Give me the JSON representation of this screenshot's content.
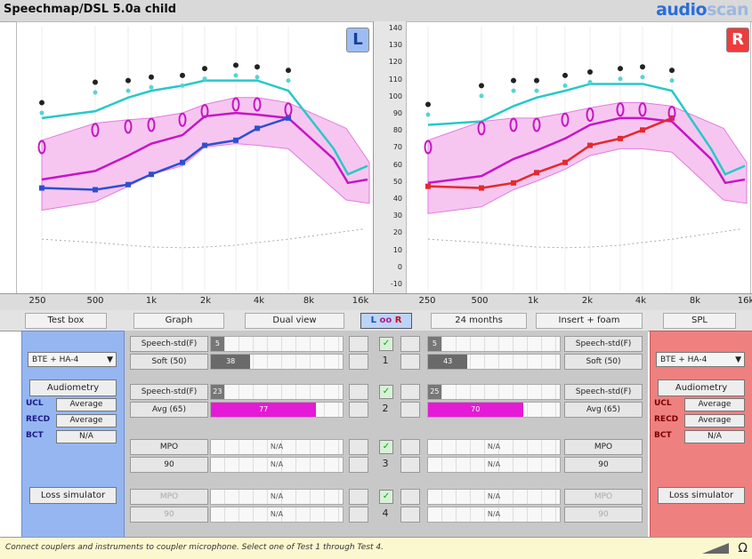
{
  "app": {
    "title": "Speechmap/DSL 5.0a child",
    "logo_a": "audio",
    "logo_b": "scan"
  },
  "graph": {
    "ear_left": "L",
    "ear_right": "R",
    "y_ticks": [
      "140",
      "130",
      "120",
      "110",
      "100",
      "90",
      "80",
      "70",
      "60",
      "50",
      "40",
      "30",
      "20",
      "10",
      "0",
      "-10"
    ],
    "x_ticks_left": [
      "250",
      "500",
      "1k",
      "2k",
      "4k",
      "8k",
      "16k"
    ],
    "x_ticks_right": [
      "250",
      "500",
      "1k",
      "2k",
      "4k",
      "8k",
      "16k"
    ]
  },
  "chart_data": {
    "type": "line",
    "ylabel": "",
    "ylim": [
      -10,
      140
    ],
    "x": [
      "250",
      "500",
      "750",
      "1k",
      "1.5k",
      "2k",
      "3k",
      "4k",
      "6k"
    ],
    "left_ear": {
      "ucl_markers": [
        97,
        109,
        110,
        112,
        113,
        117,
        119,
        118,
        116
      ],
      "ucl_line": [
        88,
        92,
        100,
        104,
        107,
        110,
        110,
        110,
        104
      ],
      "targets_max": [
        71,
        81,
        83,
        84,
        87,
        92,
        96,
        96,
        93
      ],
      "aided_line": [
        47,
        46,
        49,
        55,
        62,
        72,
        75,
        82,
        88
      ],
      "fit_line": [
        52,
        57,
        66,
        73,
        78,
        89,
        91,
        90,
        88
      ]
    },
    "right_ear": {
      "ucl_markers": [
        96,
        107,
        110,
        110,
        113,
        115,
        117,
        118,
        116
      ],
      "ucl_line": [
        84,
        86,
        95,
        100,
        104,
        108,
        108,
        108,
        104
      ],
      "targets_max": [
        71,
        82,
        84,
        84,
        87,
        90,
        93,
        93,
        91
      ],
      "aided_line": [
        48,
        47,
        50,
        56,
        62,
        72,
        76,
        81,
        88
      ],
      "fit_line": [
        50,
        54,
        64,
        69,
        76,
        84,
        88,
        88,
        86
      ]
    }
  },
  "controls": {
    "test_box": "Test box",
    "graph": "Graph",
    "dual_view": "Dual view",
    "lbr_l": "L",
    "lbr_b": "oo",
    "lbr_r": "R",
    "age": "24 months",
    "coupling": "Insert + foam",
    "spl": "SPL"
  },
  "left_panel": {
    "device": "BTE + HA-4",
    "audiometry": "Audiometry",
    "ucl_key": "UCL",
    "ucl_val": "Average",
    "reco_key": "RECD",
    "reco_val": "Average",
    "bct_key": "BCT",
    "bct_val": "N/A",
    "loss_sim": "Loss simulator"
  },
  "right_panel": {
    "device": "BTE + HA-4",
    "audiometry": "Audiometry",
    "ucl_key": "UCL",
    "ucl_val": "Average",
    "reco_key": "RECD",
    "reco_val": "Average",
    "bct_key": "BCT",
    "bct_val": "N/A",
    "loss_sim": "Loss simulator"
  },
  "tests": [
    {
      "num": "1",
      "stim": "Speech-std(F)",
      "level": "Soft (50)",
      "left_stim_val": "5",
      "right_stim_val": "5",
      "left_level_val": "38",
      "right_level_val": "43",
      "left_fill": 0.3,
      "right_fill": 0.3,
      "fill_color": "#6a6a6a"
    },
    {
      "num": "2",
      "stim": "Speech-std(F)",
      "level": "Avg (65)",
      "left_stim_val": "23",
      "right_stim_val": "25",
      "left_level_val": "77",
      "right_level_val": "70",
      "left_fill": 0.8,
      "right_fill": 0.72,
      "fill_color": "#e51ad6"
    },
    {
      "num": "3",
      "stim": "MPO",
      "level": "90",
      "left_stim_val": "N/A",
      "right_stim_val": "N/A",
      "left_level_val": "N/A",
      "right_level_val": "N/A"
    },
    {
      "num": "4",
      "stim": "MPO",
      "level": "90",
      "left_stim_val": "N/A",
      "right_stim_val": "N/A",
      "left_level_val": "N/A",
      "right_level_val": "N/A"
    }
  ],
  "status": {
    "text": "Connect couplers and instruments to coupler microphone.  Select one of Test 1 through Test 4."
  }
}
